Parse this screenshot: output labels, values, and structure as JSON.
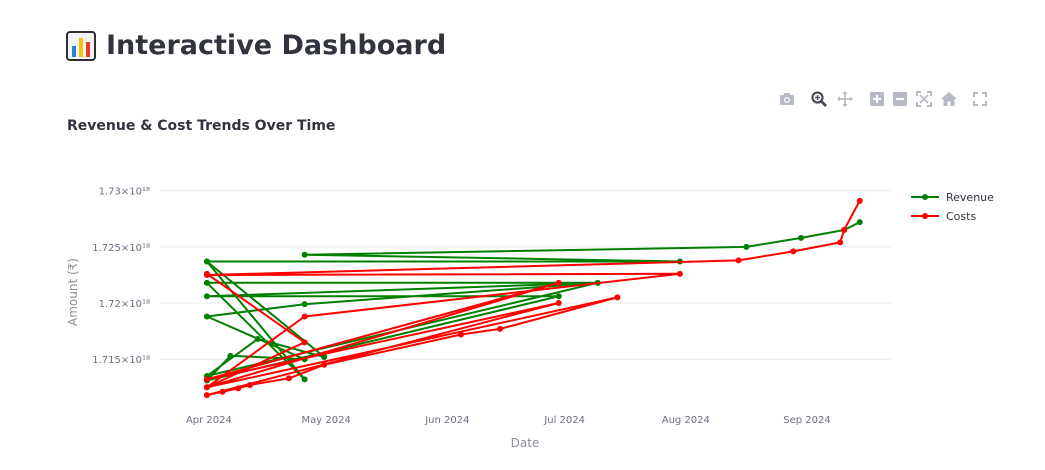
{
  "header": {
    "icon": "bar-chart-emoji-icon",
    "title": "Interactive Dashboard"
  },
  "modebar": {
    "buttons": [
      {
        "name": "camera-icon",
        "tooltip": "Download plot as a png"
      },
      {
        "name": "zoom-icon",
        "tooltip": "Zoom"
      },
      {
        "name": "pan-icon",
        "tooltip": "Pan"
      },
      {
        "name": "zoom-in-icon",
        "tooltip": "Zoom in"
      },
      {
        "name": "zoom-out-icon",
        "tooltip": "Zoom out"
      },
      {
        "name": "autoscale-icon",
        "tooltip": "Autoscale"
      },
      {
        "name": "reset-axes-icon",
        "tooltip": "Reset axes"
      },
      {
        "name": "fullscreen-icon",
        "tooltip": "Full screen"
      }
    ]
  },
  "chart": {
    "title": "Revenue & Cost Trends Over Time"
  },
  "colors": {
    "revenue": "#008000",
    "costs": "#ff0000",
    "grid": "#e9eaee",
    "text": "#31333f"
  },
  "chart_data": {
    "type": "line",
    "title": "Revenue & Cost Trends Over Time",
    "xlabel": "Date",
    "ylabel": "Amount (₹)",
    "x_ticks": [
      "Apr 2024",
      "May 2024",
      "Jun 2024",
      "Jul 2024",
      "Aug 2024",
      "Sep 2024"
    ],
    "y_ticks": [
      "1.715×10¹⁸",
      "1.72×10¹⁸",
      "1.725×10¹⁸",
      "1.73×10¹⁸"
    ],
    "xlim": [
      "2024-03-20",
      "2024-09-23"
    ],
    "ylim": [
      1.7111e+18,
      1.7314e+18
    ],
    "grid": true,
    "legend_position": "top-right",
    "series": [
      {
        "name": "Revenue",
        "color": "#008000",
        "points": [
          [
            "2024-04-01",
            1.7237e+18
          ],
          [
            "2024-04-26",
            1.7132e+18
          ],
          [
            "2024-04-01",
            1.7218e+18
          ],
          [
            "2024-07-10",
            1.7218e+18
          ],
          [
            "2024-04-01",
            1.7206e+18
          ],
          [
            "2024-06-30",
            1.7206e+18
          ],
          [
            "2024-04-01",
            1.7131e+18
          ],
          [
            "2024-04-07",
            1.7153e+18
          ],
          [
            "2024-04-26",
            1.715e+18
          ],
          [
            "2024-04-01",
            1.7188e+18
          ],
          [
            "2024-04-26",
            1.7199e+18
          ],
          [
            "2024-07-10",
            1.7218e+18
          ],
          [
            "2024-04-01",
            1.7135e+18
          ],
          [
            "2024-04-14",
            1.7168e+18
          ],
          [
            "2024-05-01",
            1.7152e+18
          ],
          [
            "2024-04-01",
            1.7237e+18
          ],
          [
            "2024-07-31",
            1.7237e+18
          ],
          [
            "2024-04-26",
            1.7243e+18
          ],
          [
            "2024-08-17",
            1.725e+18
          ],
          [
            "2024-08-31",
            1.7258e+18
          ],
          [
            "2024-09-11",
            1.7265e+18
          ],
          [
            "2024-09-15",
            1.7272e+18
          ]
        ]
      },
      {
        "name": "Costs",
        "color": "#ff0000",
        "points": [
          [
            "2024-04-01",
            1.7226e+18
          ],
          [
            "2024-04-26",
            1.7165e+18
          ],
          [
            "2024-04-01",
            1.7125e+18
          ],
          [
            "2024-06-30",
            1.7218e+18
          ],
          [
            "2024-04-01",
            1.7132e+18
          ],
          [
            "2024-06-30",
            1.72e+18
          ],
          [
            "2024-04-01",
            1.7118e+18
          ],
          [
            "2024-04-05",
            1.7121e+18
          ],
          [
            "2024-04-09",
            1.7124e+18
          ],
          [
            "2024-04-12",
            1.7127e+18
          ],
          [
            "2024-04-22",
            1.7133e+18
          ],
          [
            "2024-05-01",
            1.7145e+18
          ],
          [
            "2024-06-05",
            1.7172e+18
          ],
          [
            "2024-06-15",
            1.7177e+18
          ],
          [
            "2024-07-15",
            1.7205e+18
          ],
          [
            "2024-04-01",
            1.7125e+18
          ],
          [
            "2024-04-26",
            1.7188e+18
          ],
          [
            "2024-07-31",
            1.7226e+18
          ],
          [
            "2024-04-01",
            1.7225e+18
          ],
          [
            "2024-08-15",
            1.7238e+18
          ],
          [
            "2024-08-29",
            1.7246e+18
          ],
          [
            "2024-09-10",
            1.7254e+18
          ],
          [
            "2024-09-11",
            1.7265e+18
          ],
          [
            "2024-09-15",
            1.7291e+18
          ]
        ]
      }
    ]
  }
}
